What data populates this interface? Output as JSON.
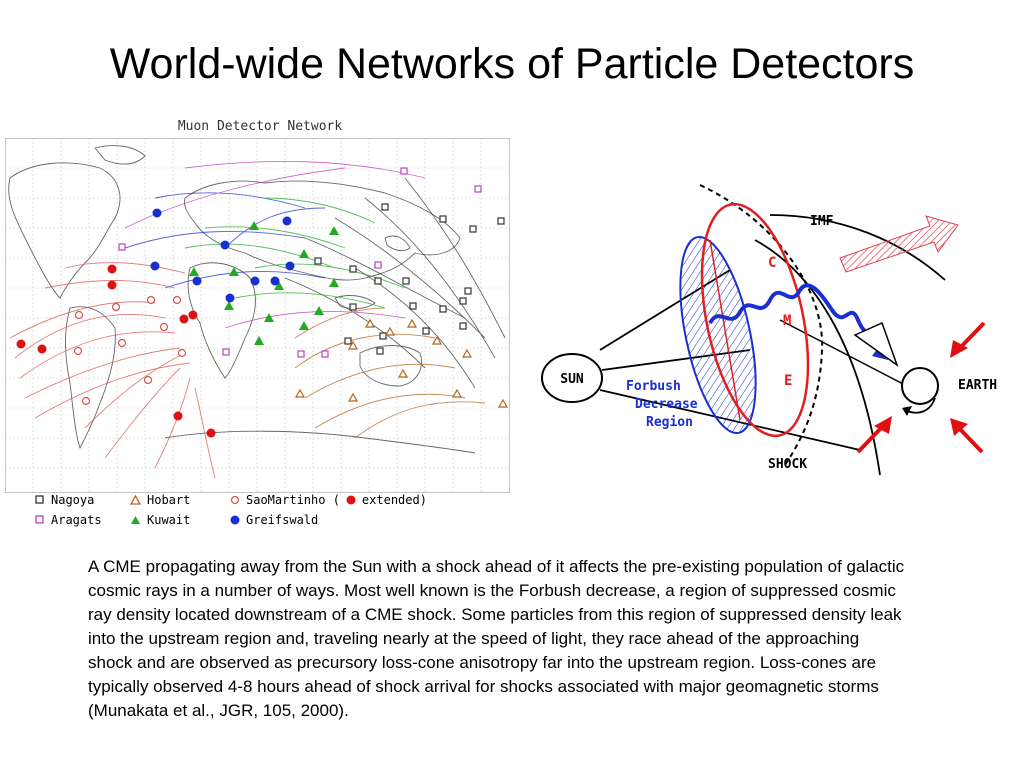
{
  "slide": {
    "title": "World-wide Networks of Particle Detectors",
    "body": "A CME propagating away from the Sun with a shock ahead of it affects the pre-existing population of galactic cosmic rays in a number of ways. Most well known is the Forbush decrease, a region of suppressed cosmic ray density located downstream of a CME shock. Some particles from this region of suppressed density leak into the upstream region and, traveling nearly at the speed of light, they race ahead of the approaching shock and are observed as precursory loss-cone anisotropy far into the upstream region. Loss-cones are typically observed 4-8 hours ahead of shock arrival for shocks associated with major geomagnetic storms (Munakata et al., JGR, 105, 2000)."
  },
  "map": {
    "title": "Muon Detector Network",
    "legend": [
      {
        "marker": "square-open",
        "color": "#333333",
        "label": "Nagoya"
      },
      {
        "marker": "triangle-open",
        "color": "#b5651d",
        "label": "Hobart"
      },
      {
        "marker": "circle-open",
        "color": "#d9534f",
        "label": "SaoMartinho ("
      },
      {
        "marker": "circle-filled",
        "color": "#dd1111",
        "label": " extended)"
      },
      {
        "marker": "square-open",
        "color": "#c040c0",
        "label": "Aragats"
      },
      {
        "marker": "triangle-filled",
        "color": "#22aa22",
        "label": "Kuwait"
      },
      {
        "marker": "circle-filled",
        "color": "#1a2fd0",
        "label": "Greifswald"
      }
    ],
    "colors": {
      "Nagoya": "#333333",
      "Hobart": "#b5651d",
      "SaoMartinho": "#d9534f",
      "SaoMartinho_extended": "#dd1111",
      "Aragats": "#c040c0",
      "Kuwait": "#22aa22",
      "Greifswald": "#1a2fd0"
    }
  },
  "diagram": {
    "labels": {
      "imf": "IMF",
      "c": "C",
      "m": "M",
      "e": "E",
      "sun": "SUN",
      "earth": "EARTH",
      "shock": "SHOCK",
      "forbush1": "Forbush",
      "forbush2": "Decrease",
      "forbush3": "Region"
    },
    "colors": {
      "cme": "#e02020",
      "forbush": "#1a2fd0",
      "arrows": "#e01010",
      "solar_wind_arrow": "#e04050"
    }
  }
}
